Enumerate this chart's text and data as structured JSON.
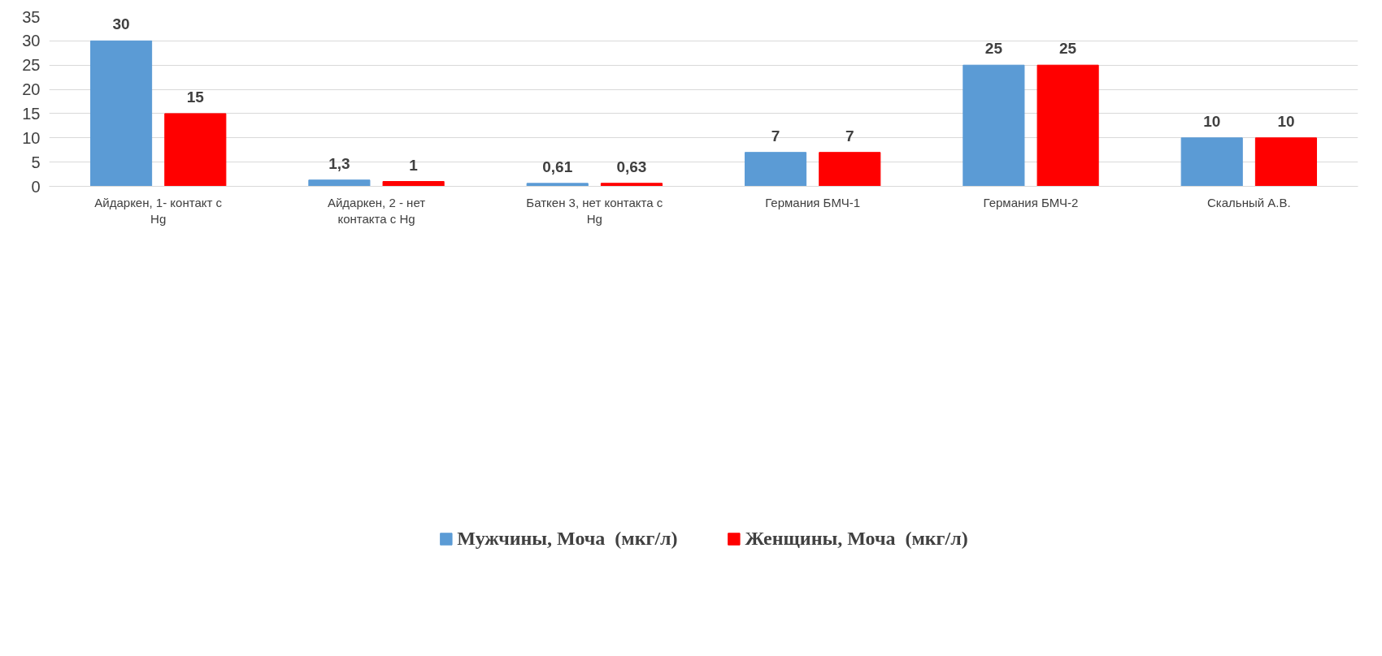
{
  "chart_data": {
    "type": "bar",
    "categories": [
      "Айдаркен, 1- контакт с Hg",
      "Айдаркен, 2 - нет контакта с Hg",
      "Баткен 3, нет контакта с Hg",
      "Германия БМЧ-1",
      "Германия БМЧ-2",
      "Скальный А.В."
    ],
    "series": [
      {
        "name": "Мужчины, Моча  (мкг/л)",
        "color": "#5b9bd5",
        "values": [
          30,
          1.3,
          0.61,
          7,
          25,
          10
        ],
        "value_labels": [
          "30",
          "1,3",
          "0,61",
          "7",
          "25",
          "10"
        ]
      },
      {
        "name": "Женщины, Моча  (мкг/л)",
        "color": "#ff0000",
        "values": [
          15,
          1,
          0.63,
          7,
          25,
          10
        ],
        "value_labels": [
          "15",
          "1",
          "0,63",
          "7",
          "25",
          "10"
        ]
      }
    ],
    "ylim": [
      0,
      35
    ],
    "yticks": [
      0,
      5,
      10,
      15,
      20,
      25,
      30,
      35
    ],
    "grid": "y",
    "legend": "bottom"
  }
}
